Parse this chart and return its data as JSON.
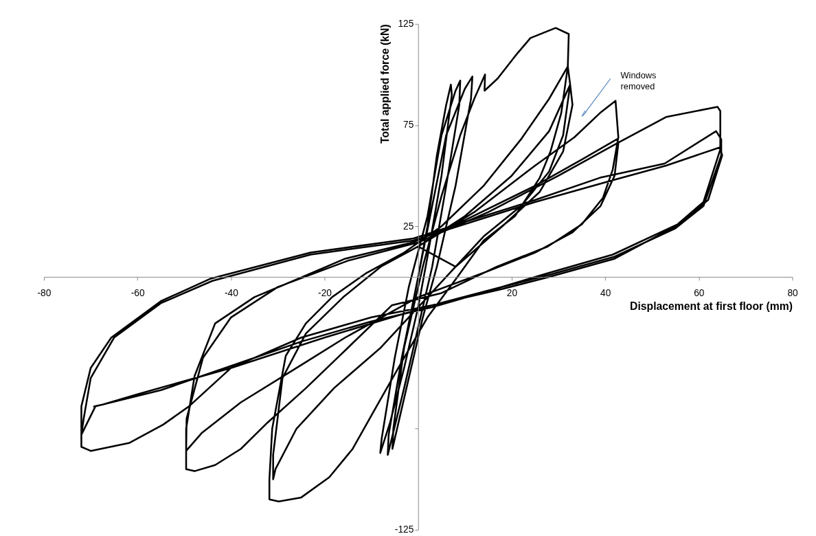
{
  "chart_data": {
    "type": "line",
    "xlabel": "Displacement  at first floor (mm)",
    "ylabel": "Total applied force (kN)",
    "xlim": [
      -80,
      80
    ],
    "xticks": [
      -80,
      -60,
      -40,
      -20,
      20,
      40,
      60,
      80
    ],
    "ylim": [
      -125,
      125
    ],
    "yticks": [
      -125,
      {
        "value": -75,
        "label": null
      },
      {
        "value": -25,
        "label": null
      },
      25,
      75,
      125
    ],
    "annotations": [
      "Windows removed"
    ],
    "series": [
      {
        "color": "#000000",
        "x": [
          0,
          2,
          4,
          6,
          7,
          7.2,
          5,
          2,
          0,
          -3,
          -6,
          -8.1,
          -7.8,
          -5,
          -2,
          2,
          5,
          8,
          9,
          8.8,
          6,
          3,
          0,
          -3,
          -6.5,
          -6.3,
          -3.5,
          0,
          3,
          6,
          10,
          11.6,
          11.3,
          8,
          4,
          1,
          -2,
          -5.5,
          -5.3,
          -3,
          1,
          5,
          9,
          12,
          14.3,
          14.2,
          17,
          20.7,
          24,
          29.4,
          32.2,
          32,
          30.6,
          28.3,
          26,
          20.7,
          14,
          8.4,
          2,
          -3,
          -8.4,
          -14,
          -19,
          -25,
          -29.8,
          -31.8,
          -31.8,
          -31.2,
          -28.3,
          -24,
          -18.4,
          -11,
          -3,
          5,
          14,
          22,
          28,
          32,
          32.5,
          31,
          28,
          22,
          14,
          6,
          0,
          -8,
          -18,
          -26,
          -30.5,
          -31,
          -31,
          -29,
          -24,
          -16,
          -8,
          0,
          10,
          20,
          28,
          32.5,
          33,
          31,
          26,
          18,
          8,
          0,
          12,
          25,
          33.4,
          38.9,
          42.2,
          42.8,
          41.6,
          39.5,
          35,
          27.7,
          16.8,
          5,
          -5.6,
          -15,
          -24,
          -32.2,
          -37.9,
          -43.4,
          -47.8,
          -49.6,
          -49.6,
          -47.8,
          -43.4,
          -35,
          -26.7,
          -15.6,
          -1.2,
          10,
          25,
          35,
          42.5,
          42.8,
          42,
          39,
          33,
          25,
          14,
          0,
          -15.6,
          -26.7,
          -37.9,
          -46.2,
          -49.6,
          -49.5,
          -46,
          -40,
          -30,
          -15,
          0,
          15,
          30,
          42.5,
          53,
          64,
          64.6,
          64.6,
          61,
          55.5,
          41.6,
          28,
          17.8,
          3,
          -10,
          -25,
          -40,
          -49,
          -54.5,
          -61.7,
          -70,
          -72,
          -72,
          -70,
          -65.6,
          -55,
          -44.5,
          -23,
          -1,
          8.5,
          25,
          38.9,
          52.7,
          63.7,
          64.8,
          64.8,
          61,
          55,
          42,
          28,
          18,
          3,
          -10,
          -25,
          -40,
          -55,
          -69,
          -72,
          -71.5,
          -70,
          -65,
          -55,
          -44,
          -23,
          -1,
          25,
          42,
          53,
          64.5,
          65,
          62,
          55,
          42,
          28,
          18,
          3,
          -20,
          -40,
          -60,
          -67.3,
          -69.3
        ],
        "values": [
          0,
          25,
          60,
          85,
          95,
          90,
          50,
          10,
          -15,
          -45,
          -72,
          -87,
          -80,
          -40,
          -5,
          30,
          70,
          92,
          97,
          85,
          45,
          5,
          -25,
          -55,
          -88,
          -78,
          -40,
          0,
          35,
          70,
          93,
          99,
          88,
          45,
          5,
          -20,
          -50,
          -85,
          -75,
          -35,
          5,
          40,
          70,
          88,
          100,
          92,
          98,
          109,
          118,
          123,
          120,
          104,
          81,
          62,
          49,
          30,
          18,
          0,
          -20,
          -40,
          -62,
          -85,
          -99,
          -109,
          -111,
          -110,
          -100,
          -75,
          -39,
          -23,
          -10,
          2,
          12,
          25,
          45,
          68,
          88,
          104,
          95,
          70,
          52,
          35,
          20,
          0,
          -15,
          -35,
          -55,
          -75,
          -95,
          -100,
          -88,
          -50,
          -28,
          -10,
          5,
          15,
          30,
          50,
          72,
          95,
          85,
          62,
          42,
          25,
          5,
          15,
          32,
          55,
          69,
          81,
          87,
          69,
          53,
          39,
          26,
          15,
          5,
          -8,
          -14,
          -35,
          -55,
          -72,
          -85,
          -93,
          -96,
          -95,
          -75,
          -49,
          -23,
          -10,
          -2,
          9,
          17,
          28,
          45,
          58,
          68,
          66,
          50,
          35,
          22,
          12,
          2,
          -10,
          -30,
          -46,
          -62,
          -77,
          -86,
          -70,
          -40,
          -20,
          -5,
          8,
          17,
          32,
          50,
          66,
          79,
          84,
          82,
          63,
          37,
          26,
          11,
          2,
          -5,
          -14,
          -20,
          -30,
          -45,
          -64,
          -73,
          -82,
          -86,
          -84,
          -64,
          -45,
          -30,
          -12,
          -1,
          12,
          19,
          26,
          38,
          49,
          56,
          72,
          68,
          60,
          35,
          24,
          10,
          1,
          -5,
          -15,
          -22,
          -32,
          -44,
          -56,
          -64,
          -78,
          -70,
          -50,
          -30,
          -13,
          -2,
          11,
          18,
          37,
          48,
          55,
          64,
          60,
          38,
          25,
          9,
          0,
          -6,
          -14,
          -30,
          -45,
          -58,
          -63,
          -64
        ]
      }
    ]
  }
}
